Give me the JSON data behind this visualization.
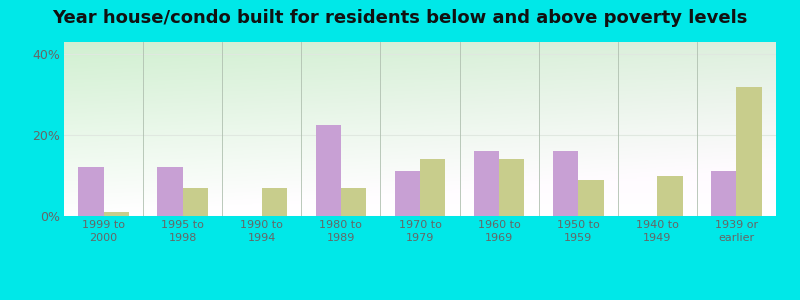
{
  "title": "Year house/condo built for residents below and above poverty levels",
  "categories": [
    "1999 to\n2000",
    "1995 to\n1998",
    "1990 to\n1994",
    "1980 to\n1989",
    "1970 to\n1979",
    "1960 to\n1969",
    "1950 to\n1959",
    "1940 to\n1949",
    "1939 or\nearlier"
  ],
  "below_poverty": [
    12.0,
    12.0,
    0.0,
    22.5,
    11.0,
    16.0,
    16.0,
    0.0,
    11.0
  ],
  "above_poverty": [
    1.0,
    7.0,
    7.0,
    7.0,
    14.0,
    14.0,
    9.0,
    10.0,
    32.0
  ],
  "below_color": "#c8a0d4",
  "above_color": "#c8cd8c",
  "background_outer": "#00e8e8",
  "background_inner_tl": "#d0efd0",
  "background_inner_br": "#f0fdf0",
  "yticks": [
    0,
    20,
    40
  ],
  "ylim": [
    0,
    43
  ],
  "bar_width": 0.32,
  "title_fontsize": 13,
  "grid_color": "#e0e8e0",
  "tick_color": "#666666",
  "separator_color": "#b0c0b0"
}
